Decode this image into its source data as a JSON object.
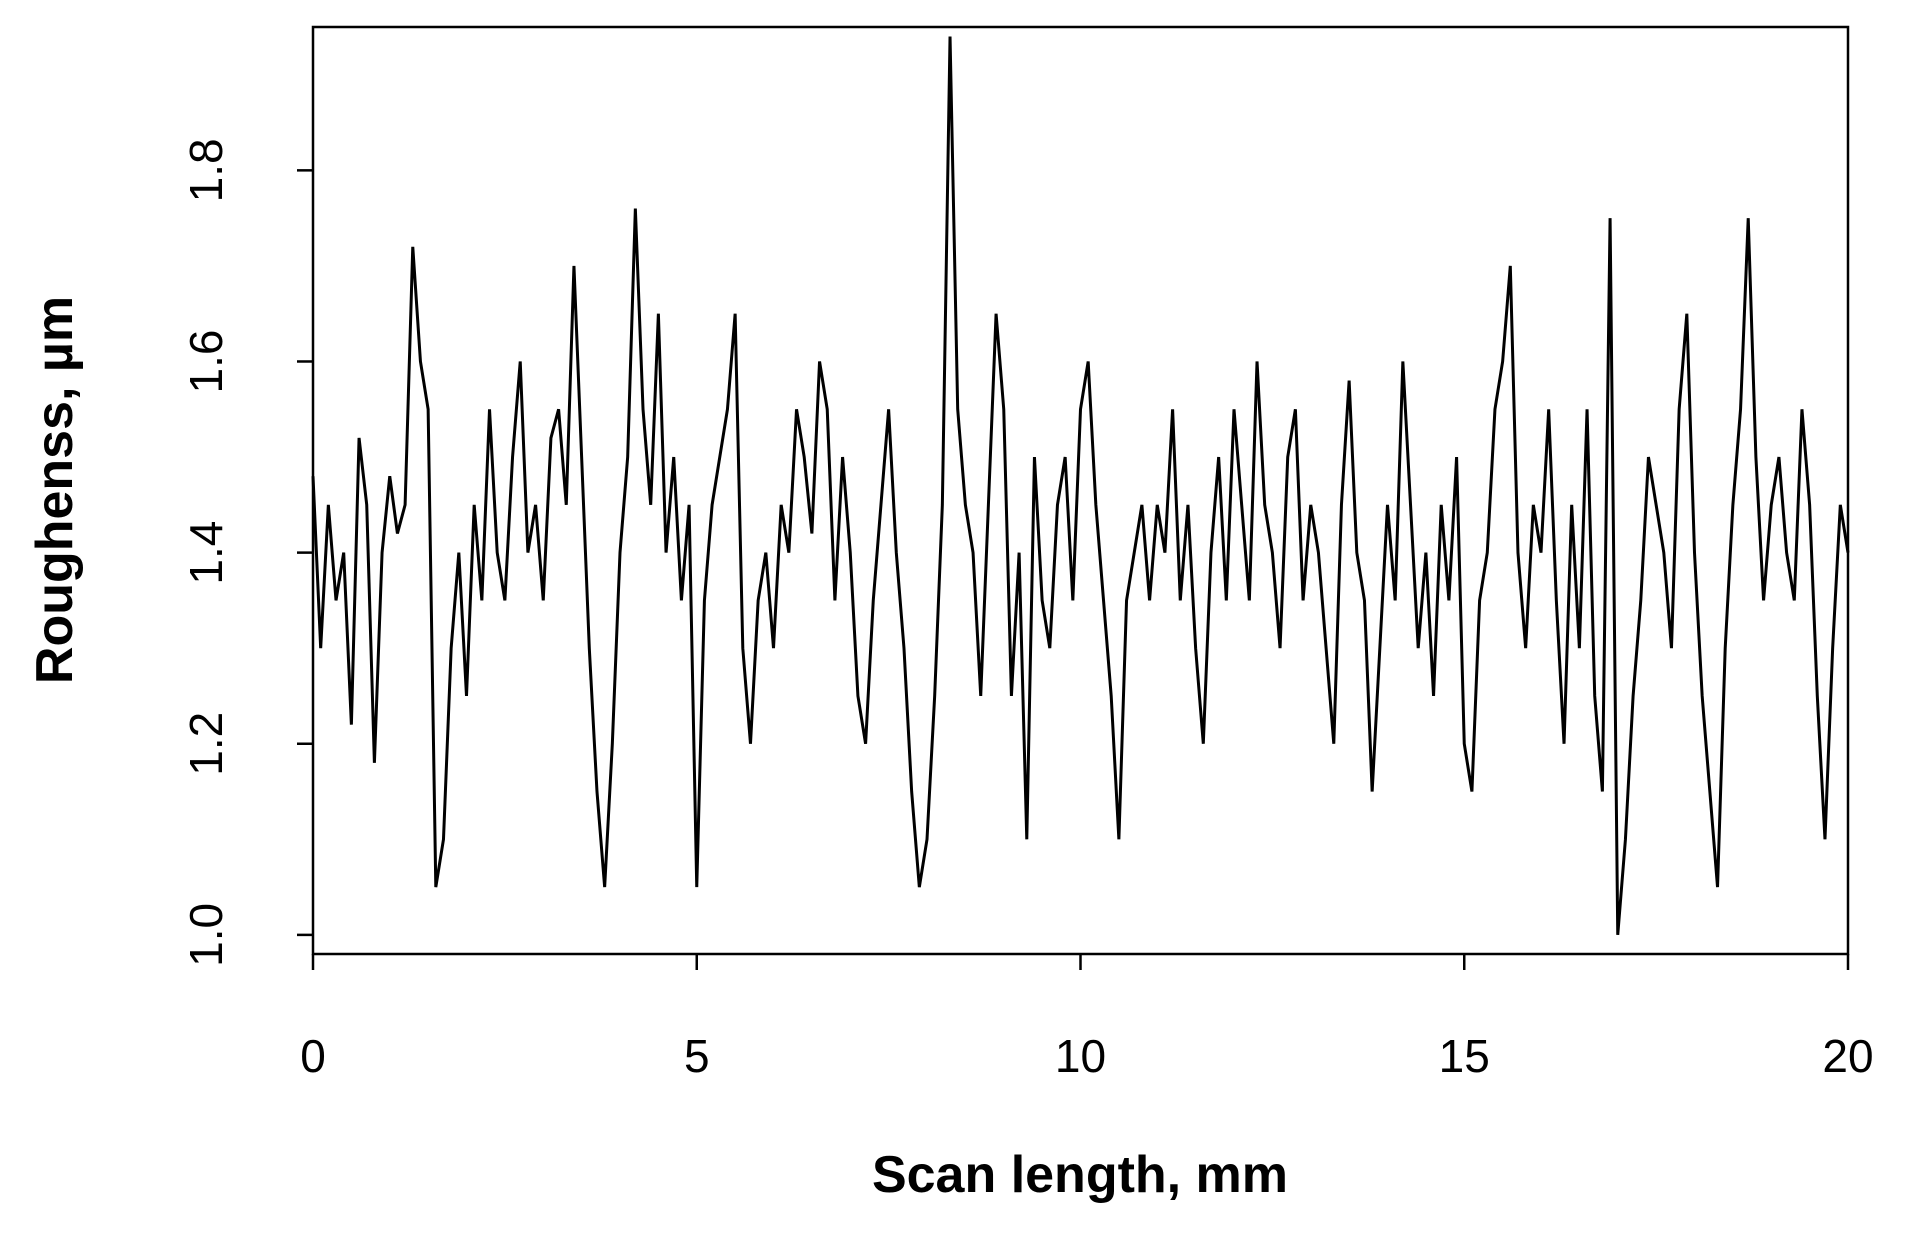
{
  "chart_data": {
    "type": "line",
    "x_label": "Scan length, mm",
    "y_label": "Roughenss, µm",
    "x": [
      0,
      0.1,
      0.2,
      0.3,
      0.4,
      0.5,
      0.6,
      0.7,
      0.8,
      0.9,
      1,
      1.1,
      1.2,
      1.3,
      1.4,
      1.5,
      1.6,
      1.7,
      1.8,
      1.9,
      2,
      2.1,
      2.2,
      2.3,
      2.4,
      2.5,
      2.6,
      2.7,
      2.8,
      2.9,
      3,
      3.1,
      3.2,
      3.3,
      3.4,
      3.5,
      3.6,
      3.7,
      3.8,
      3.9,
      4,
      4.1,
      4.2,
      4.3,
      4.4,
      4.5,
      4.6,
      4.7,
      4.8,
      4.9,
      5,
      5.1,
      5.2,
      5.3,
      5.4,
      5.5,
      5.6,
      5.7,
      5.8,
      5.9,
      6,
      6.1,
      6.2,
      6.3,
      6.4,
      6.5,
      6.6,
      6.7,
      6.8,
      6.9,
      7,
      7.1,
      7.2,
      7.3,
      7.4,
      7.5,
      7.6,
      7.7,
      7.8,
      7.9,
      8,
      8.1,
      8.2,
      8.3,
      8.4,
      8.5,
      8.6,
      8.7,
      8.8,
      8.9,
      9,
      9.1,
      9.2,
      9.3,
      9.4,
      9.5,
      9.6,
      9.7,
      9.8,
      9.9,
      10,
      10.1,
      10.2,
      10.3,
      10.4,
      10.5,
      10.6,
      10.7,
      10.8,
      10.9,
      11,
      11.1,
      11.2,
      11.3,
      11.4,
      11.5,
      11.6,
      11.7,
      11.8,
      11.9,
      12,
      12.1,
      12.2,
      12.3,
      12.4,
      12.5,
      12.6,
      12.7,
      12.8,
      12.9,
      13,
      13.1,
      13.2,
      13.3,
      13.4,
      13.5,
      13.6,
      13.7,
      13.8,
      13.9,
      14,
      14.1,
      14.2,
      14.3,
      14.4,
      14.5,
      14.6,
      14.7,
      14.8,
      14.9,
      15,
      15.1,
      15.2,
      15.3,
      15.4,
      15.5,
      15.6,
      15.7,
      15.8,
      15.9,
      16,
      16.1,
      16.2,
      16.3,
      16.4,
      16.5,
      16.6,
      16.7,
      16.8,
      16.9,
      17,
      17.1,
      17.2,
      17.3,
      17.4,
      17.5,
      17.6,
      17.7,
      17.8,
      17.9,
      18,
      18.1,
      18.2,
      18.3,
      18.4,
      18.5,
      18.6,
      18.7,
      18.8,
      18.9,
      19,
      19.1,
      19.2,
      19.3,
      19.4,
      19.5,
      19.6,
      19.7,
      19.8,
      19.9,
      20
    ],
    "series": [
      {
        "color": "#000000",
        "values": [
          1.48,
          1.3,
          1.45,
          1.35,
          1.4,
          1.22,
          1.52,
          1.45,
          1.18,
          1.4,
          1.48,
          1.42,
          1.45,
          1.72,
          1.6,
          1.55,
          1.05,
          1.1,
          1.3,
          1.4,
          1.25,
          1.45,
          1.35,
          1.55,
          1.4,
          1.35,
          1.5,
          1.6,
          1.4,
          1.45,
          1.35,
          1.52,
          1.55,
          1.45,
          1.7,
          1.5,
          1.3,
          1.15,
          1.05,
          1.2,
          1.4,
          1.5,
          1.76,
          1.55,
          1.45,
          1.65,
          1.4,
          1.5,
          1.35,
          1.45,
          1.05,
          1.35,
          1.45,
          1.5,
          1.55,
          1.65,
          1.3,
          1.2,
          1.35,
          1.4,
          1.3,
          1.45,
          1.4,
          1.55,
          1.5,
          1.42,
          1.6,
          1.55,
          1.35,
          1.5,
          1.4,
          1.25,
          1.2,
          1.35,
          1.45,
          1.55,
          1.4,
          1.3,
          1.15,
          1.05,
          1.1,
          1.25,
          1.45,
          1.94,
          1.55,
          1.45,
          1.4,
          1.25,
          1.45,
          1.65,
          1.55,
          1.25,
          1.4,
          1.1,
          1.5,
          1.35,
          1.3,
          1.45,
          1.5,
          1.35,
          1.55,
          1.6,
          1.45,
          1.35,
          1.25,
          1.1,
          1.35,
          1.4,
          1.45,
          1.35,
          1.45,
          1.4,
          1.55,
          1.35,
          1.45,
          1.3,
          1.2,
          1.4,
          1.5,
          1.35,
          1.55,
          1.45,
          1.35,
          1.6,
          1.45,
          1.4,
          1.3,
          1.5,
          1.55,
          1.35,
          1.45,
          1.4,
          1.3,
          1.2,
          1.45,
          1.58,
          1.4,
          1.35,
          1.15,
          1.3,
          1.45,
          1.35,
          1.6,
          1.45,
          1.3,
          1.4,
          1.25,
          1.45,
          1.35,
          1.5,
          1.2,
          1.15,
          1.35,
          1.4,
          1.55,
          1.6,
          1.7,
          1.4,
          1.3,
          1.45,
          1.4,
          1.55,
          1.35,
          1.2,
          1.45,
          1.3,
          1.55,
          1.25,
          1.15,
          1.75,
          1.0,
          1.1,
          1.25,
          1.35,
          1.5,
          1.45,
          1.4,
          1.3,
          1.55,
          1.65,
          1.4,
          1.25,
          1.15,
          1.05,
          1.3,
          1.45,
          1.55,
          1.75,
          1.5,
          1.35,
          1.45,
          1.5,
          1.4,
          1.35,
          1.55,
          1.45,
          1.25,
          1.1,
          1.3,
          1.45,
          1.4
        ]
      }
    ],
    "xlim": [
      0,
      20
    ],
    "ylim": [
      0.98,
      1.95
    ],
    "xticks": [
      0,
      5,
      10,
      15,
      20
    ],
    "yticks": [
      {
        "value": 1,
        "label": "1.0"
      },
      1.2,
      1.4,
      1.6,
      1.8
    ]
  }
}
